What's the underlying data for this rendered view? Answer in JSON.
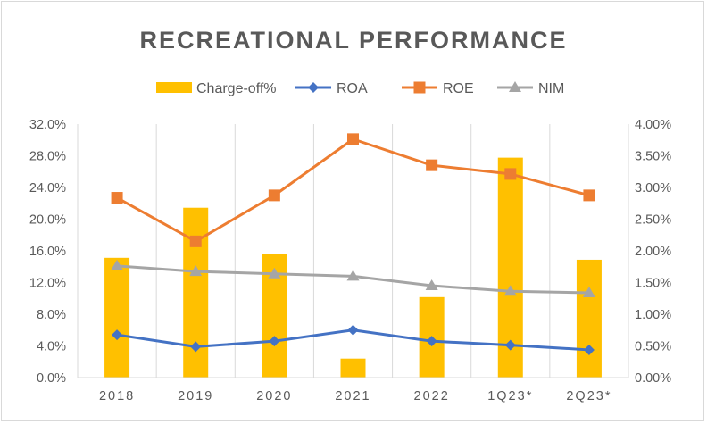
{
  "chart_data": {
    "type": "bar+line",
    "title": "RECREATIONAL PERFORMANCE",
    "categories": [
      "2018",
      "2019",
      "2020",
      "2021",
      "2022",
      "1Q23*",
      "2Q23*"
    ],
    "legend": {
      "position": "top",
      "entries": [
        "Charge-off%",
        "ROA",
        "ROE",
        "NIM"
      ]
    },
    "primary_axis": {
      "side": "left",
      "ticks": [
        "0.0%",
        "4.0%",
        "8.0%",
        "12.0%",
        "16.0%",
        "20.0%",
        "24.0%",
        "28.0%",
        "32.0%"
      ],
      "range": [
        0,
        32
      ]
    },
    "secondary_axis": {
      "side": "right",
      "ticks": [
        "0.00%",
        "0.50%",
        "1.00%",
        "1.50%",
        "2.00%",
        "2.50%",
        "3.00%",
        "3.50%",
        "4.00%"
      ],
      "range": [
        0,
        4
      ]
    },
    "gridlines": "vertical",
    "series": [
      {
        "name": "Charge-off%",
        "type": "bar",
        "axis": "secondary",
        "color": "#ffc000",
        "values": [
          1.89,
          2.68,
          1.95,
          0.3,
          1.27,
          3.47,
          1.86
        ]
      },
      {
        "name": "ROA",
        "type": "line",
        "axis": "primary",
        "marker": "diamond",
        "color": "#4472c4",
        "values": [
          5.4,
          3.9,
          4.6,
          6.0,
          4.6,
          4.1,
          3.5
        ]
      },
      {
        "name": "ROE",
        "type": "line",
        "axis": "primary",
        "marker": "square",
        "color": "#ed7d31",
        "values": [
          22.7,
          17.2,
          23.0,
          30.1,
          26.8,
          25.7,
          23.0
        ]
      },
      {
        "name": "NIM",
        "type": "line",
        "axis": "primary",
        "marker": "triangle",
        "color": "#a5a5a5",
        "values": [
          14.1,
          13.4,
          13.1,
          12.8,
          11.6,
          10.9,
          10.7
        ]
      }
    ]
  }
}
